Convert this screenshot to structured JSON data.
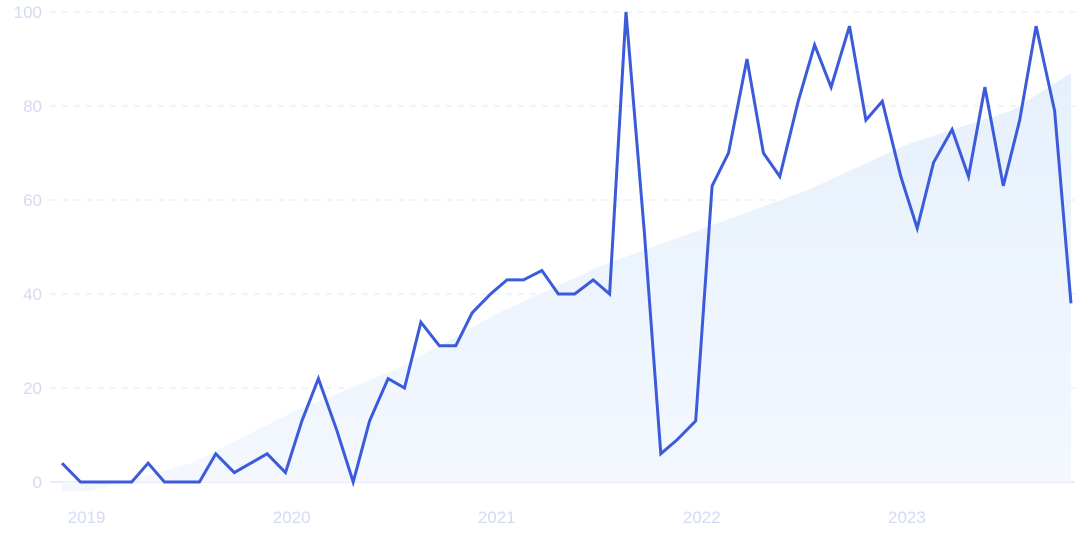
{
  "chart_data": {
    "type": "line",
    "colors": {
      "line": "#3b5bdb",
      "trend_fill": "#eaf2fd",
      "tick_text": "#d3daf2",
      "grid": "#e4e8f4"
    },
    "grid": true,
    "ylim": [
      0,
      100
    ],
    "xlim": [
      2018.87,
      2023.79
    ],
    "y_ticks": [
      {
        "value": 0,
        "label": "0"
      },
      {
        "value": 20,
        "label": "20"
      },
      {
        "value": 40,
        "label": "40"
      },
      {
        "value": 60,
        "label": "60"
      },
      {
        "value": 80,
        "label": "80"
      },
      {
        "value": 100,
        "label": "100"
      }
    ],
    "x_ticks": [
      {
        "value": 2019,
        "label": "2019"
      },
      {
        "value": 2020,
        "label": "2020"
      },
      {
        "value": 2021,
        "label": "2021"
      },
      {
        "value": 2022,
        "label": "2022"
      },
      {
        "value": 2023,
        "label": "2023"
      }
    ],
    "series": [
      {
        "role": "interest",
        "x": [
          2018.87,
          2018.96,
          2019.04,
          2019.12,
          2019.21,
          2019.29,
          2019.37,
          2019.46,
          2019.54,
          2019.62,
          2019.71,
          2019.79,
          2019.87,
          2019.96,
          2020.04,
          2020.12,
          2020.21,
          2020.29,
          2020.37,
          2020.46,
          2020.54,
          2020.62,
          2020.71,
          2020.79,
          2020.87,
          2020.96,
          2021.04,
          2021.12,
          2021.21,
          2021.29,
          2021.37,
          2021.46,
          2021.54,
          2021.62,
          2021.71,
          2021.79,
          2021.87,
          2021.96,
          2022.04,
          2022.12,
          2022.21,
          2022.29,
          2022.37,
          2022.46,
          2022.54,
          2022.62,
          2022.71,
          2022.79,
          2022.87,
          2022.96,
          2023.04,
          2023.12,
          2023.21,
          2023.29,
          2023.37,
          2023.46,
          2023.54,
          2023.62,
          2023.71,
          2023.79
        ],
        "values": [
          4,
          0,
          0,
          0,
          0,
          4,
          0,
          0,
          0,
          6,
          2,
          4,
          6,
          2,
          13,
          22,
          11,
          0,
          13,
          22,
          20,
          34,
          29,
          29,
          36,
          40,
          43,
          43,
          45,
          40,
          40,
          43,
          40,
          100,
          53,
          6,
          9,
          13,
          63,
          70,
          90,
          70,
          65,
          81,
          93,
          84,
          97,
          77,
          81,
          65,
          54,
          68,
          75,
          65,
          84,
          63,
          77,
          97,
          79,
          38
        ]
      },
      {
        "role": "trend",
        "x": [
          2018.87,
          2019.0,
          2019.5,
          2020.0,
          2020.5,
          2021.0,
          2021.5,
          2022.0,
          2022.5,
          2023.0,
          2023.5,
          2023.79
        ],
        "values": [
          -2,
          -2,
          4,
          15,
          24,
          36,
          46,
          54,
          62,
          72,
          79,
          87
        ]
      }
    ]
  }
}
